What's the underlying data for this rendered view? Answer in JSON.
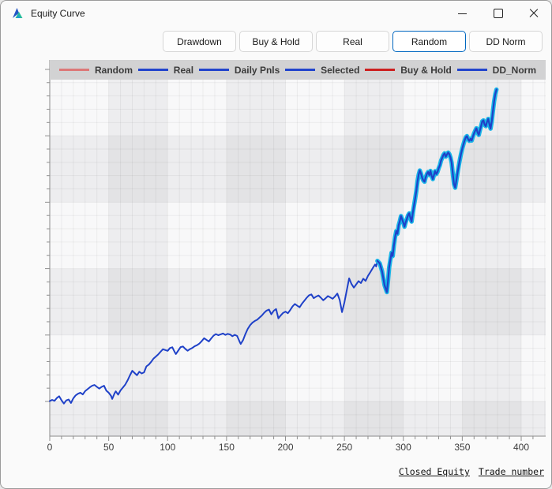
{
  "window": {
    "title": "Equity Curve",
    "controls": {
      "minimize": "minimize",
      "maximize": "maximize",
      "close": "close"
    }
  },
  "toolbar": {
    "buttons": [
      {
        "label": "Drawdown",
        "active": false
      },
      {
        "label": "Buy & Hold",
        "active": false
      },
      {
        "label": "Real",
        "active": false
      },
      {
        "label": "Random",
        "active": true
      },
      {
        "label": "DD Norm",
        "active": false
      }
    ]
  },
  "legend": {
    "items": [
      {
        "label": "Random",
        "color": "#dd7878"
      },
      {
        "label": "Real",
        "color": "#2244cc"
      },
      {
        "label": "Daily Pnls",
        "color": "#2244cc"
      },
      {
        "label": "Selected",
        "color": "#2244cc"
      },
      {
        "label": "Buy & Hold",
        "color": "#cc2020"
      },
      {
        "label": "DD_Norm",
        "color": "#2244cc"
      }
    ]
  },
  "axes": {
    "ylabel_link": "Closed Equity",
    "xlabel_link": "Trade number"
  },
  "chart_data": {
    "type": "line",
    "xlabel": "Trade number",
    "ylabel": "Closed Equity",
    "legend_position": "top",
    "grid": true,
    "xlim": [
      0,
      420
    ],
    "ylim": [
      -26000,
      258000
    ],
    "x_ticks": [
      0,
      50,
      100,
      150,
      200,
      250,
      300,
      350,
      400
    ],
    "y_ticks": [
      0,
      50000,
      100000,
      150000,
      200000,
      250000
    ],
    "band_step_x": 50,
    "band_step_y": 50000,
    "colors": {
      "line": "#1f41c8",
      "highlight": "#1ab6e8"
    },
    "highlight_from_x": 278,
    "series": [
      {
        "name": "Real/Random equity",
        "points": [
          [
            0,
            300
          ],
          [
            2,
            1200
          ],
          [
            4,
            500
          ],
          [
            6,
            2600
          ],
          [
            8,
            3900
          ],
          [
            10,
            900
          ],
          [
            12,
            -1600
          ],
          [
            14,
            800
          ],
          [
            16,
            1500
          ],
          [
            18,
            -1100
          ],
          [
            20,
            2300
          ],
          [
            22,
            4600
          ],
          [
            24,
            5800
          ],
          [
            26,
            6600
          ],
          [
            28,
            5300
          ],
          [
            30,
            7800
          ],
          [
            32,
            9200
          ],
          [
            34,
            10600
          ],
          [
            36,
            11800
          ],
          [
            38,
            12400
          ],
          [
            40,
            11000
          ],
          [
            42,
            9700
          ],
          [
            44,
            11000
          ],
          [
            46,
            11800
          ],
          [
            48,
            8200
          ],
          [
            50,
            6600
          ],
          [
            52,
            4200
          ],
          [
            53,
            1900
          ],
          [
            55,
            6200
          ],
          [
            56,
            7600
          ],
          [
            58,
            5100
          ],
          [
            60,
            8300
          ],
          [
            62,
            10400
          ],
          [
            64,
            12600
          ],
          [
            66,
            15800
          ],
          [
            68,
            19600
          ],
          [
            70,
            23100
          ],
          [
            72,
            21400
          ],
          [
            74,
            19700
          ],
          [
            76,
            22400
          ],
          [
            78,
            21100
          ],
          [
            80,
            21900
          ],
          [
            82,
            26400
          ],
          [
            84,
            27700
          ],
          [
            86,
            29800
          ],
          [
            88,
            32200
          ],
          [
            90,
            33800
          ],
          [
            92,
            35400
          ],
          [
            94,
            37400
          ],
          [
            96,
            39300
          ],
          [
            98,
            38700
          ],
          [
            100,
            38100
          ],
          [
            102,
            40200
          ],
          [
            104,
            40800
          ],
          [
            106,
            37200
          ],
          [
            107,
            35700
          ],
          [
            109,
            38300
          ],
          [
            111,
            40900
          ],
          [
            113,
            41400
          ],
          [
            115,
            39600
          ],
          [
            117,
            38200
          ],
          [
            119,
            39400
          ],
          [
            121,
            40300
          ],
          [
            123,
            41600
          ],
          [
            125,
            42400
          ],
          [
            127,
            43600
          ],
          [
            129,
            45500
          ],
          [
            131,
            47600
          ],
          [
            133,
            46400
          ],
          [
            135,
            45200
          ],
          [
            137,
            47500
          ],
          [
            139,
            49600
          ],
          [
            141,
            50700
          ],
          [
            143,
            49900
          ],
          [
            145,
            50500
          ],
          [
            147,
            51200
          ],
          [
            149,
            50100
          ],
          [
            151,
            50900
          ],
          [
            153,
            50400
          ],
          [
            155,
            49100
          ],
          [
            157,
            50200
          ],
          [
            159,
            49300
          ],
          [
            161,
            45200
          ],
          [
            162,
            43300
          ],
          [
            164,
            46200
          ],
          [
            166,
            50800
          ],
          [
            168,
            54600
          ],
          [
            170,
            57400
          ],
          [
            172,
            59300
          ],
          [
            174,
            60600
          ],
          [
            176,
            61500
          ],
          [
            178,
            63200
          ],
          [
            180,
            64700
          ],
          [
            182,
            66800
          ],
          [
            184,
            68400
          ],
          [
            186,
            69200
          ],
          [
            188,
            65600
          ],
          [
            190,
            68300
          ],
          [
            192,
            69600
          ],
          [
            194,
            62600
          ],
          [
            196,
            64800
          ],
          [
            198,
            66700
          ],
          [
            200,
            67600
          ],
          [
            202,
            66400
          ],
          [
            204,
            68800
          ],
          [
            206,
            71600
          ],
          [
            208,
            73400
          ],
          [
            210,
            72100
          ],
          [
            212,
            70900
          ],
          [
            214,
            73600
          ],
          [
            216,
            75800
          ],
          [
            218,
            78100
          ],
          [
            220,
            79900
          ],
          [
            222,
            80600
          ],
          [
            224,
            77700
          ],
          [
            226,
            78900
          ],
          [
            228,
            79800
          ],
          [
            230,
            78100
          ],
          [
            232,
            76200
          ],
          [
            234,
            77600
          ],
          [
            236,
            79300
          ],
          [
            238,
            78400
          ],
          [
            240,
            77300
          ],
          [
            242,
            79100
          ],
          [
            244,
            81200
          ],
          [
            246,
            76300
          ],
          [
            248,
            67200
          ],
          [
            250,
            74500
          ],
          [
            252,
            83600
          ],
          [
            254,
            92700
          ],
          [
            256,
            88400
          ],
          [
            258,
            85700
          ],
          [
            260,
            88200
          ],
          [
            262,
            90600
          ],
          [
            264,
            89100
          ],
          [
            266,
            92400
          ],
          [
            268,
            90800
          ],
          [
            270,
            94600
          ],
          [
            272,
            97400
          ],
          [
            274,
            100300
          ],
          [
            276,
            103100
          ],
          [
            277,
            101600
          ],
          [
            278,
            105800
          ],
          [
            280,
            103900
          ],
          [
            282,
            97800
          ],
          [
            284,
            87600
          ],
          [
            286,
            82300
          ],
          [
            287,
            90500
          ],
          [
            288,
            101000
          ],
          [
            289,
            106500
          ],
          [
            290,
            112000
          ],
          [
            291,
            109500
          ],
          [
            292,
            117500
          ],
          [
            293,
            123800
          ],
          [
            294,
            128300
          ],
          [
            295,
            126200
          ],
          [
            296,
            132600
          ],
          [
            297,
            135800
          ],
          [
            298,
            139600
          ],
          [
            299,
            137100
          ],
          [
            300,
            134400
          ],
          [
            301,
            131500
          ],
          [
            302,
            134800
          ],
          [
            303,
            137400
          ],
          [
            304,
            140100
          ],
          [
            305,
            141600
          ],
          [
            306,
            138300
          ],
          [
            307,
            135400
          ],
          [
            308,
            141800
          ],
          [
            309,
            147300
          ],
          [
            310,
            152600
          ],
          [
            311,
            158400
          ],
          [
            312,
            165700
          ],
          [
            313,
            170900
          ],
          [
            314,
            173900
          ],
          [
            315,
            171600
          ],
          [
            316,
            168400
          ],
          [
            317,
            166300
          ],
          [
            318,
            165400
          ],
          [
            319,
            168800
          ],
          [
            320,
            171300
          ],
          [
            321,
            172700
          ],
          [
            322,
            170400
          ],
          [
            323,
            173600
          ],
          [
            324,
            169800
          ],
          [
            325,
            167400
          ],
          [
            326,
            170600
          ],
          [
            327,
            173400
          ],
          [
            328,
            171200
          ],
          [
            329,
            172800
          ],
          [
            330,
            175600
          ],
          [
            331,
            177800
          ],
          [
            332,
            181300
          ],
          [
            333,
            183400
          ],
          [
            334,
            185600
          ],
          [
            335,
            186800
          ],
          [
            336,
            184300
          ],
          [
            337,
            185900
          ],
          [
            338,
            187400
          ],
          [
            339,
            186200
          ],
          [
            340,
            183600
          ],
          [
            341,
            179800
          ],
          [
            342,
            171400
          ],
          [
            343,
            163600
          ],
          [
            344,
            160900
          ],
          [
            345,
            166300
          ],
          [
            346,
            172200
          ],
          [
            347,
            177400
          ],
          [
            348,
            182300
          ],
          [
            349,
            186600
          ],
          [
            350,
            190400
          ],
          [
            351,
            193700
          ],
          [
            352,
            196600
          ],
          [
            353,
            198900
          ],
          [
            354,
            199800
          ],
          [
            355,
            197400
          ],
          [
            356,
            196200
          ],
          [
            357,
            197800
          ],
          [
            358,
            196400
          ],
          [
            359,
            199300
          ],
          [
            360,
            201800
          ],
          [
            361,
            203900
          ],
          [
            362,
            205700
          ],
          [
            363,
            202400
          ],
          [
            364,
            200600
          ],
          [
            365,
            204300
          ],
          [
            366,
            207600
          ],
          [
            367,
            210900
          ],
          [
            368,
            211600
          ],
          [
            369,
            208300
          ],
          [
            370,
            207200
          ],
          [
            371,
            210400
          ],
          [
            372,
            212700
          ],
          [
            373,
            208900
          ],
          [
            374,
            205400
          ],
          [
            375,
            210800
          ],
          [
            376,
            218600
          ],
          [
            377,
            225900
          ],
          [
            378,
            231400
          ],
          [
            379,
            234800
          ]
        ]
      }
    ]
  }
}
